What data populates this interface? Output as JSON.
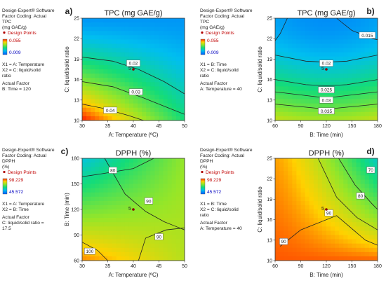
{
  "info_common": {
    "software": "Design-Expert® Software",
    "coding": "Factor Coding: Actual",
    "design_points_label": "Design Points",
    "actual_factor": "Actual Factor"
  },
  "chart_data": [
    {
      "type": "heatmap",
      "panel_letter": "a)",
      "title": "TPC (mg GAE/g)",
      "xlabel": "A: Temperature (ºC)",
      "ylabel": "C: liquid/solid ratio",
      "xlim": [
        30,
        50
      ],
      "ylim": [
        10,
        25
      ],
      "xticks": [
        30,
        35,
        40,
        45,
        50
      ],
      "yticks": [
        10,
        13,
        16,
        19,
        22,
        25
      ],
      "response_name": "TPC (mg GAE/g)",
      "response_max": "0.055",
      "response_min": "0.009",
      "factors": [
        "X1 = A: Temperature",
        "X2 = C: liquid/solid ratio"
      ],
      "actual_factor_value": "B: Time = 120",
      "contour_labels": [
        {
          "text": "0.02",
          "x": 40,
          "y": 18.4
        },
        {
          "text": "0.03",
          "x": 40.5,
          "y": 14.2
        },
        {
          "text": "0.04",
          "x": 35.5,
          "y": 11.5
        }
      ],
      "design_point": {
        "x": 40,
        "y": 17.5,
        "label": "5"
      },
      "colormap": "surface-a"
    },
    {
      "type": "heatmap",
      "panel_letter": "b)",
      "title": "TPC (mg GAE/g)",
      "xlabel": "B: Time (min)",
      "ylabel": "C: liquid/solid ratio",
      "xlim": [
        60,
        180
      ],
      "ylim": [
        10,
        25
      ],
      "xticks": [
        60,
        90,
        120,
        150,
        180
      ],
      "yticks": [
        10,
        13,
        16,
        19,
        22,
        25
      ],
      "response_name": "TPC (mg GAE/g)",
      "response_max": "0.055",
      "response_min": "0.009",
      "factors": [
        "X1 = B: Time",
        "X2 = C: liquid/solid ratio"
      ],
      "actual_factor_value": "A: Temperature = 40",
      "contour_labels": [
        {
          "text": "0.015",
          "x": 168,
          "y": 22.5
        },
        {
          "text": "0.02",
          "x": 120,
          "y": 18.4
        },
        {
          "text": "0.025",
          "x": 120,
          "y": 14.5
        },
        {
          "text": "0.03",
          "x": 120,
          "y": 13.0
        },
        {
          "text": "0.035",
          "x": 120,
          "y": 11.4
        }
      ],
      "design_point": {
        "x": 120,
        "y": 17.5,
        "label": "5"
      },
      "colormap": "surface-b"
    },
    {
      "type": "heatmap",
      "panel_letter": "c)",
      "title": "DPPH (%)",
      "xlabel": "A: Temperature (ºC)",
      "ylabel": "B: Time (min)",
      "xlim": [
        30,
        50
      ],
      "ylim": [
        60,
        180
      ],
      "xticks": [
        30,
        35,
        40,
        45,
        50
      ],
      "yticks": [
        60,
        90,
        120,
        150,
        180
      ],
      "response_name": "DPPH (%)",
      "response_max": "98.229",
      "response_min": "45.572",
      "factors": [
        "X1 = A: Temperature",
        "X2 = B: Time"
      ],
      "actual_factor_value": "C: liquid/solid ratio = 17.5",
      "contour_labels": [
        {
          "text": "80",
          "x": 36,
          "y": 166
        },
        {
          "text": "90",
          "x": 43,
          "y": 130
        },
        {
          "text": "90",
          "x": 45,
          "y": 88
        },
        {
          "text": "100",
          "x": 31.5,
          "y": 71
        }
      ],
      "design_point": {
        "x": 40,
        "y": 120,
        "label": "5"
      },
      "colormap": "surface-c"
    },
    {
      "type": "heatmap",
      "panel_letter": "d)",
      "title": "DPPH (%)",
      "xlabel": "B: Time (min)",
      "ylabel": "C: liquid/solid ratio",
      "xlim": [
        60,
        180
      ],
      "ylim": [
        10,
        25
      ],
      "xticks": [
        60,
        90,
        120,
        150,
        180
      ],
      "yticks": [
        10,
        13,
        16,
        19,
        22,
        25
      ],
      "response_name": "DPPH (%)",
      "response_max": "98.229",
      "response_min": "45.572",
      "factors": [
        "X1 = B: Time",
        "X2 = C: liquid/solid ratio"
      ],
      "actual_factor_value": "A: Temperature = 40",
      "contour_labels": [
        {
          "text": "70",
          "x": 172,
          "y": 23.3
        },
        {
          "text": "80",
          "x": 160,
          "y": 19.5
        },
        {
          "text": "90",
          "x": 123,
          "y": 17.0
        },
        {
          "text": "90",
          "x": 70,
          "y": 12.8
        }
      ],
      "design_point": {
        "x": 120,
        "y": 17.5,
        "label": "5"
      },
      "colormap": "surface-d"
    }
  ]
}
